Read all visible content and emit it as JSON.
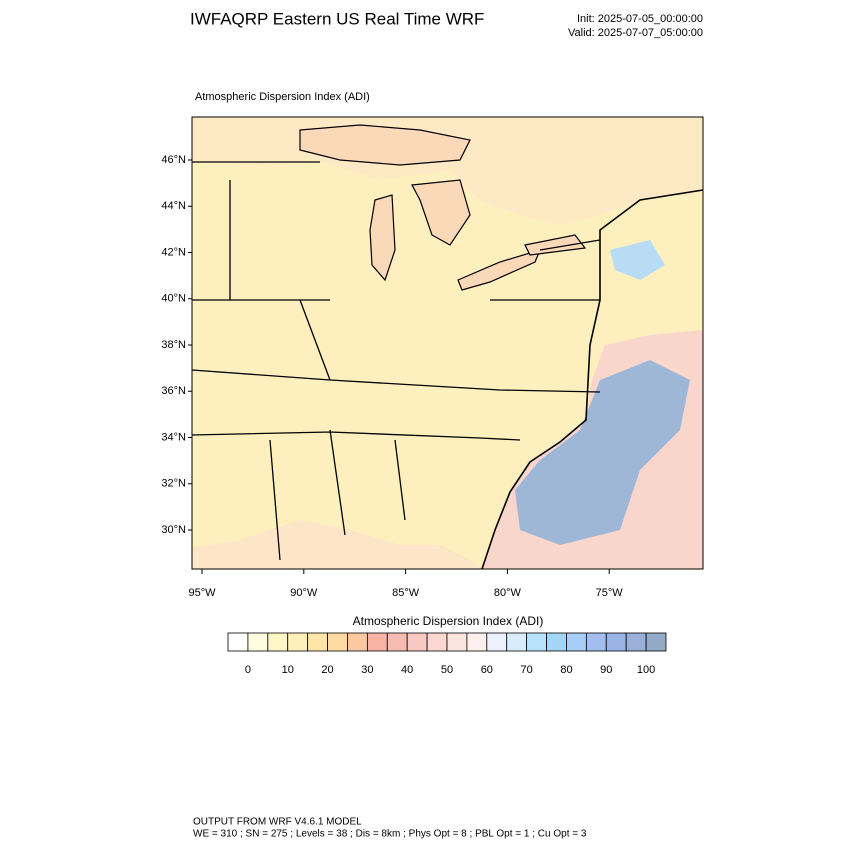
{
  "header": {
    "title": "IWFAQRP Eastern US Real Time WRF",
    "init": "Init: 2025-07-05_00:00:00",
    "valid": "Valid: 2025-07-07_05:00:00"
  },
  "map": {
    "subtitle": "Atmospheric Dispersion Index   (ADI)",
    "lat_labels": [
      "46°N",
      "44°N",
      "42°N",
      "40°N",
      "38°N",
      "36°N",
      "34°N",
      "32°N",
      "30°N"
    ],
    "lon_labels": [
      "95°W",
      "90°W",
      "85°W",
      "80°W",
      "75°W"
    ]
  },
  "colorbar": {
    "title": "Atmospheric Dispersion Index  (ADI)",
    "tick_labels": [
      "0",
      "10",
      "20",
      "30",
      "40",
      "50",
      "60",
      "70",
      "80",
      "90",
      "100"
    ],
    "colors": [
      "#ffffff",
      "#fffde0",
      "#fff6c8",
      "#ffefb8",
      "#ffe6a8",
      "#fddaa2",
      "#fbc8a2",
      "#f7b4a4",
      "#f6bcb4",
      "#f8c9c2",
      "#fad7d0",
      "#fce4df",
      "#fdf0ee",
      "#eef2ff",
      "#d8ecfc",
      "#b8e2f9",
      "#a2d6f4",
      "#a8cdf6",
      "#a2bdee",
      "#9ab4e6",
      "#9bb0d8",
      "#93a9c6"
    ]
  },
  "footer": {
    "line1": "OUTPUT FROM WRF V4.6.1 MODEL",
    "line2": "WE = 310 ; SN = 275 ; Levels = 38 ; Dis = 8km ; Phys Opt = 8 ; PBL Opt = 1 ; Cu Opt = 3"
  }
}
